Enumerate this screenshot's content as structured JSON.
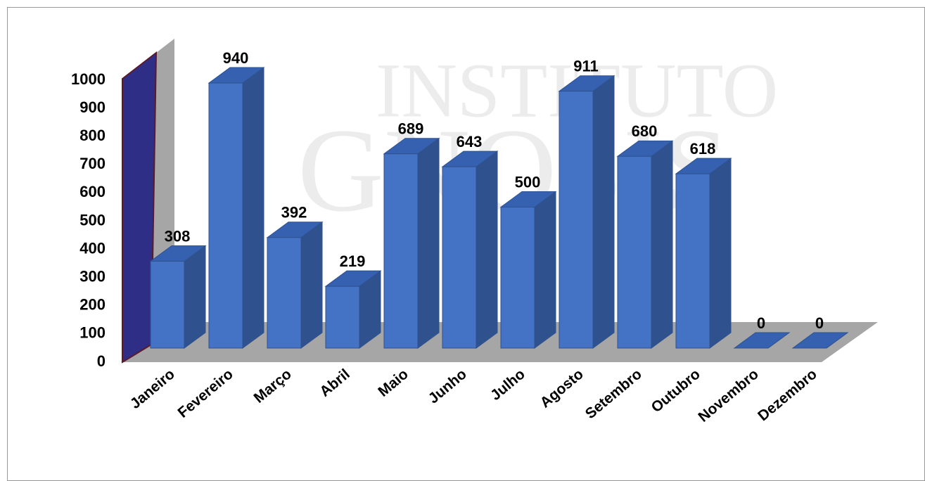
{
  "chart_data": {
    "type": "bar3d",
    "categories": [
      "Janeiro",
      "Fevereiro",
      "Março",
      "Abril",
      "Maio",
      "Junho",
      "Julho",
      "Agosto",
      "Setembro",
      "Outubro",
      "Novembro",
      "Dezembro"
    ],
    "values": [
      308,
      940,
      392,
      219,
      689,
      643,
      500,
      911,
      680,
      618,
      0,
      0
    ],
    "color": "#4472c4",
    "ylim": [
      0,
      1000
    ],
    "yticks": [
      0,
      100,
      200,
      300,
      400,
      500,
      600,
      700,
      800,
      900,
      1000
    ],
    "grid": false,
    "watermark": [
      "INSTITUTO",
      "GNOSIS"
    ]
  }
}
